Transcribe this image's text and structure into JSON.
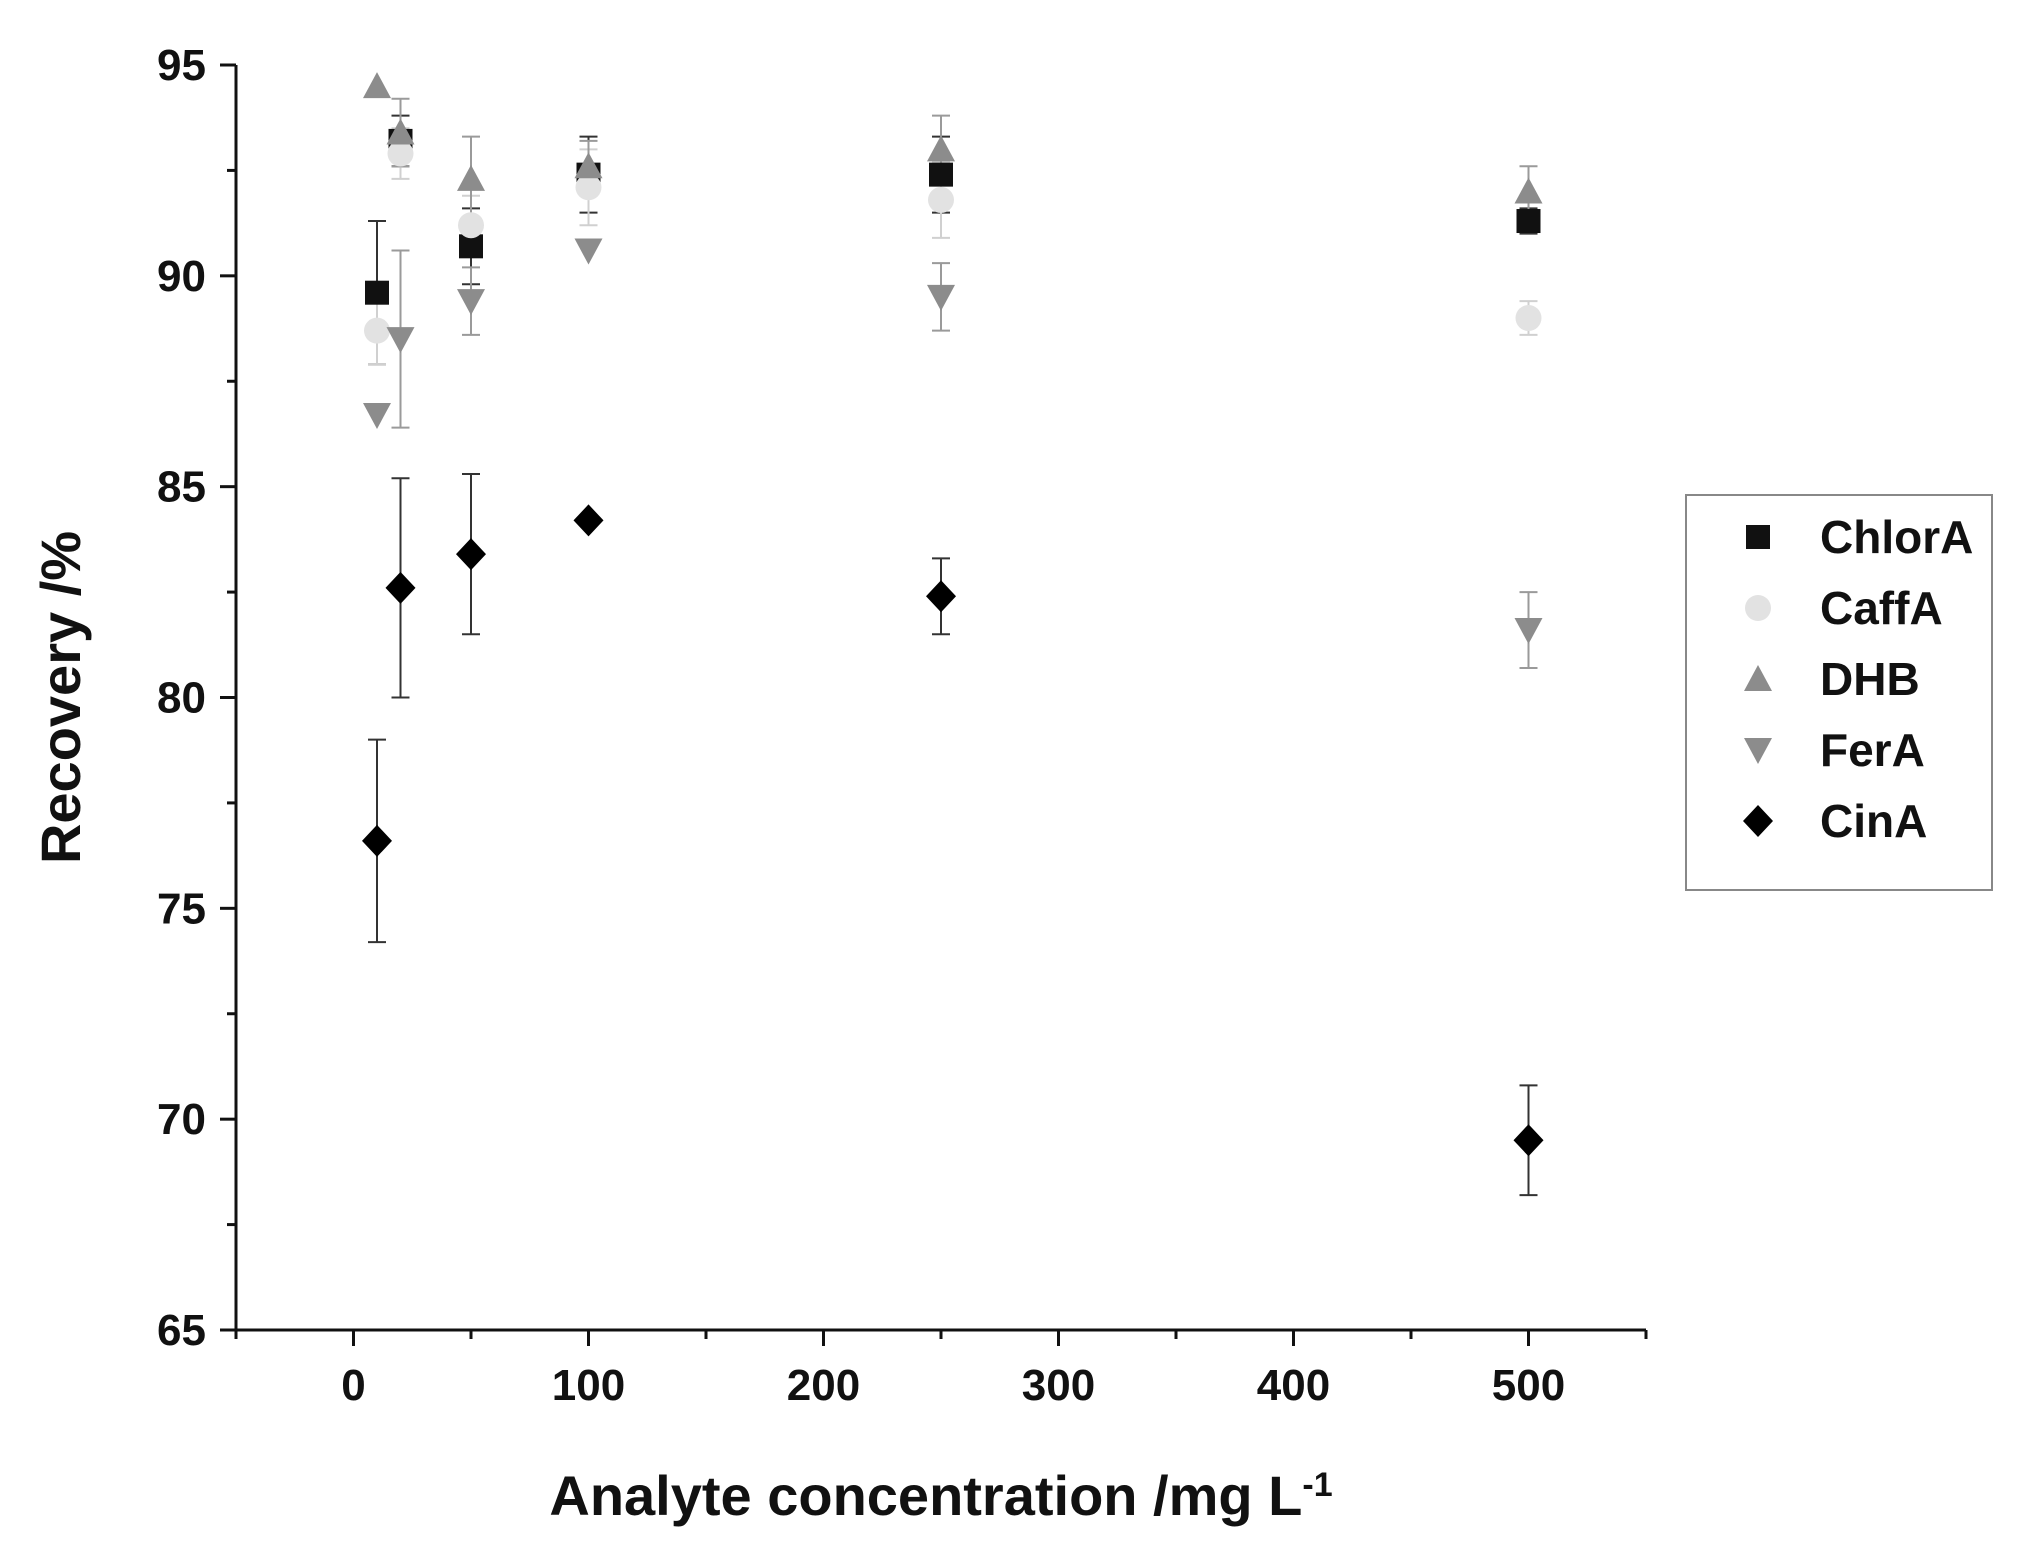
{
  "chart_data": {
    "type": "scatter",
    "title": "",
    "xlabel": "Analyte concentration /mg L",
    "xlabel_sup": "-1",
    "ylabel": "Recovery /%",
    "xlim": [
      -50,
      550
    ],
    "ylim": [
      65,
      95
    ],
    "x_ticks": [
      0,
      100,
      200,
      300,
      400,
      500
    ],
    "y_ticks": [
      65,
      70,
      75,
      80,
      85,
      90,
      95
    ],
    "grid": false,
    "legend_position": "right",
    "series": [
      {
        "name": "ChlorA",
        "marker": "square",
        "color": "#111111",
        "points": [
          {
            "x": 10,
            "y": 89.6,
            "err": 1.7
          },
          {
            "x": 20,
            "y": 93.2,
            "err": 0.6
          },
          {
            "x": 50,
            "y": 90.7,
            "err": 0.9
          },
          {
            "x": 100,
            "y": 92.4,
            "err": 0.9
          },
          {
            "x": 250,
            "y": 92.4,
            "err": 0.9
          },
          {
            "x": 500,
            "y": 91.3,
            "err": 0.3
          }
        ]
      },
      {
        "name": "CaffA",
        "marker": "circle",
        "color": "#e2e2e2",
        "points": [
          {
            "x": 10,
            "y": 88.7,
            "err": 0.8
          },
          {
            "x": 20,
            "y": 92.9,
            "err": 0.6
          },
          {
            "x": 50,
            "y": 91.2,
            "err": 0.7
          },
          {
            "x": 100,
            "y": 92.1,
            "err": 0.9
          },
          {
            "x": 250,
            "y": 91.8,
            "err": 0.9
          },
          {
            "x": 500,
            "y": 89.0,
            "err": 0.4
          }
        ]
      },
      {
        "name": "DHB",
        "marker": "triangle-up",
        "color": "#8c8c8c",
        "points": [
          {
            "x": 10,
            "y": 94.5,
            "err": 0
          },
          {
            "x": 20,
            "y": 93.4,
            "err": 0.8
          },
          {
            "x": 50,
            "y": 92.3,
            "err": 1.0
          },
          {
            "x": 100,
            "y": 92.6,
            "err": 0.6
          },
          {
            "x": 250,
            "y": 93.0,
            "err": 0.8
          },
          {
            "x": 500,
            "y": 92.0,
            "err": 0.6
          }
        ]
      },
      {
        "name": "FerA",
        "marker": "triangle-down",
        "color": "#8c8c8c",
        "points": [
          {
            "x": 10,
            "y": 86.7,
            "err": 0
          },
          {
            "x": 20,
            "y": 88.5,
            "err": 2.1
          },
          {
            "x": 50,
            "y": 89.4,
            "err": 0.8
          },
          {
            "x": 100,
            "y": 90.6,
            "err": 0
          },
          {
            "x": 250,
            "y": 89.5,
            "err": 0.8
          },
          {
            "x": 500,
            "y": 81.6,
            "err": 0.9
          }
        ]
      },
      {
        "name": "CinA",
        "marker": "diamond",
        "color": "#000000",
        "points": [
          {
            "x": 10,
            "y": 76.6,
            "err": 2.4
          },
          {
            "x": 20,
            "y": 82.6,
            "err": 2.6
          },
          {
            "x": 50,
            "y": 83.4,
            "err": 1.9
          },
          {
            "x": 100,
            "y": 84.2,
            "err": 0
          },
          {
            "x": 250,
            "y": 82.4,
            "err": 0.9
          },
          {
            "x": 500,
            "y": 69.5,
            "err": 1.3
          }
        ]
      }
    ]
  }
}
